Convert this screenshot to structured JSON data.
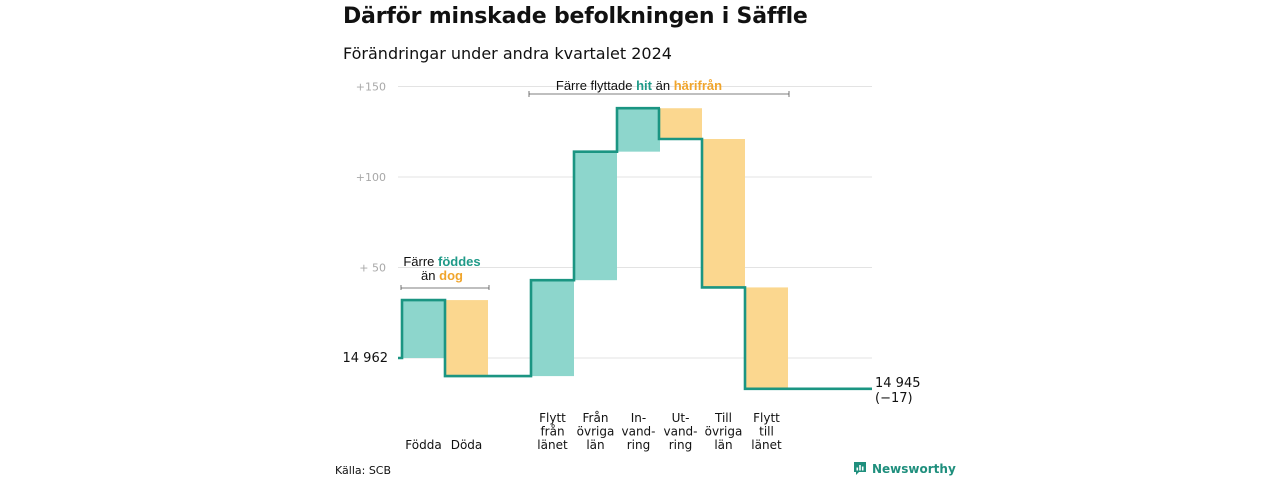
{
  "title": "Därför minskade befolkningen i Säffle",
  "subtitle": "Förändringar under andra kvartalet 2024",
  "source": "Källa: SCB",
  "brand": "Newsworthy",
  "colors": {
    "increase_fill": "#8dd6cc",
    "decrease_fill": "#fbd78f",
    "line": "#1b9582",
    "teal_text": "#1f9a88",
    "orange_text": "#f0a52c",
    "grid": "#e3e3e3"
  },
  "annotations": {
    "births": {
      "line1": "Färre",
      "hl1": "föddes",
      "line2": "än",
      "hl2": "dog"
    },
    "migration": {
      "pre": "Färre flyttade",
      "hl1": "hit",
      "mid": "än",
      "hl2": "härifrån"
    }
  },
  "chart_data": {
    "type": "waterfall",
    "title": "Därför minskade befolkningen i Säffle",
    "subtitle": "Förändringar under andra kvartalet 2024",
    "start_label": "14 962",
    "start_value": 14962,
    "end_label": "14 945",
    "end_change_label": "(−17)",
    "end_value": 14945,
    "y_ticks": [
      "+150",
      "+100",
      "+ 50"
    ],
    "y_tick_values": [
      150,
      100,
      50
    ],
    "ylim": [
      -20,
      150
    ],
    "steps": [
      {
        "label": "Födda",
        "lines": [
          "Födda"
        ],
        "value": 32,
        "kind": "increase"
      },
      {
        "label": "Döda",
        "lines": [
          "Döda"
        ],
        "value": -42,
        "kind": "decrease"
      },
      {
        "label": "Flytt från länet",
        "lines": [
          "Flytt",
          "från",
          "länet"
        ],
        "value": 53,
        "kind": "increase"
      },
      {
        "label": "Från övriga län",
        "lines": [
          "Från",
          "övriga",
          "län"
        ],
        "value": 71,
        "kind": "increase"
      },
      {
        "label": "In-vandring",
        "lines": [
          "In-",
          "vand-",
          "ring"
        ],
        "value": 24,
        "kind": "increase"
      },
      {
        "label": "Ut-vandring",
        "lines": [
          "Ut-",
          "vand-",
          "ring"
        ],
        "value": -17,
        "kind": "decrease"
      },
      {
        "label": "Till övriga län",
        "lines": [
          "Till",
          "övriga",
          "län"
        ],
        "value": -82,
        "kind": "decrease"
      },
      {
        "label": "Flytt till länet",
        "lines": [
          "Flytt",
          "till",
          "länet"
        ],
        "value": -56,
        "kind": "decrease"
      }
    ]
  }
}
